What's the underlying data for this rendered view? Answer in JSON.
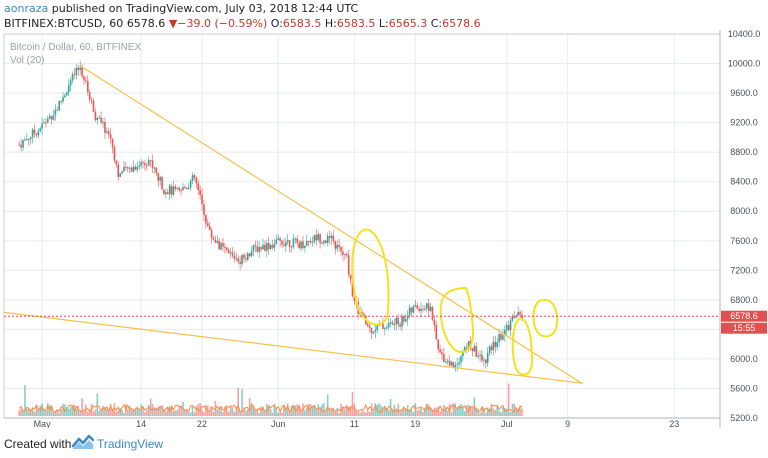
{
  "header": {
    "author": "aonraza",
    "published": "published on TradingView.com, July 03, 2018 12:44 UTC",
    "symbol": "BITFINEX:BTCUSD, 60",
    "price": "6578.6",
    "arrow": "▼",
    "change": "−39.0 (−0.59%)",
    "o_label": "O:",
    "o_value": "6583.5",
    "h_label": "H:",
    "h_value": "6583.5",
    "l_label": "L:",
    "l_value": "6565.3",
    "c_label": "C:",
    "c_value": "6578.6"
  },
  "footer": {
    "created_with": "Created with",
    "brand": "TradingView"
  },
  "chart_data": {
    "type": "candlestick",
    "title": "Bitcoin / Dollar, 60, BITFINEX",
    "subtitle": "Vol (20)",
    "ylim": [
      5200,
      10400
    ],
    "y_ticks": [
      "10400.0",
      "10000.0",
      "9600.0",
      "9200.0",
      "8800.0",
      "8400.0",
      "8000.0",
      "7600.0",
      "7200.0",
      "6800.0",
      "6400.0",
      "6000.0",
      "5600.0",
      "5200.0"
    ],
    "x_ticks": [
      "May",
      "14",
      "22",
      "Jun",
      "11",
      "19",
      "Jul",
      "9",
      "23"
    ],
    "last_price": "6578.6",
    "countdown": "15:55",
    "price_path": [
      {
        "date": "2018-04-28",
        "value": 8900
      },
      {
        "date": "2018-05-01",
        "value": 9150
      },
      {
        "date": "2018-05-03",
        "value": 9400
      },
      {
        "date": "2018-05-05",
        "value": 9800
      },
      {
        "date": "2018-05-06",
        "value": 9950
      },
      {
        "date": "2018-05-08",
        "value": 9300
      },
      {
        "date": "2018-05-10",
        "value": 9000
      },
      {
        "date": "2018-05-11",
        "value": 8500
      },
      {
        "date": "2018-05-13",
        "value": 8600
      },
      {
        "date": "2018-05-15",
        "value": 8700
      },
      {
        "date": "2018-05-17",
        "value": 8300
      },
      {
        "date": "2018-05-19",
        "value": 8250
      },
      {
        "date": "2018-05-21",
        "value": 8450
      },
      {
        "date": "2018-05-23",
        "value": 7700
      },
      {
        "date": "2018-05-25",
        "value": 7450
      },
      {
        "date": "2018-05-27",
        "value": 7350
      },
      {
        "date": "2018-05-29",
        "value": 7500
      },
      {
        "date": "2018-05-31",
        "value": 7550
      },
      {
        "date": "2018-06-02",
        "value": 7600
      },
      {
        "date": "2018-06-04",
        "value": 7550
      },
      {
        "date": "2018-06-06",
        "value": 7650
      },
      {
        "date": "2018-06-08",
        "value": 7600
      },
      {
        "date": "2018-06-10",
        "value": 7350
      },
      {
        "date": "2018-06-11",
        "value": 6750
      },
      {
        "date": "2018-06-13",
        "value": 6400
      },
      {
        "date": "2018-06-15",
        "value": 6450
      },
      {
        "date": "2018-06-17",
        "value": 6500
      },
      {
        "date": "2018-06-19",
        "value": 6700
      },
      {
        "date": "2018-06-21",
        "value": 6700
      },
      {
        "date": "2018-06-22",
        "value": 6100
      },
      {
        "date": "2018-06-24",
        "value": 5900
      },
      {
        "date": "2018-06-26",
        "value": 6200
      },
      {
        "date": "2018-06-28",
        "value": 5950
      },
      {
        "date": "2018-06-29",
        "value": 6150
      },
      {
        "date": "2018-07-01",
        "value": 6400
      },
      {
        "date": "2018-07-02",
        "value": 6600
      },
      {
        "date": "2018-07-03",
        "value": 6578.6
      }
    ],
    "trendlines": [
      {
        "name": "upper",
        "from": {
          "date": "2018-05-06",
          "value": 9970
        },
        "to": {
          "date": "2018-07-11",
          "value": 5660
        }
      },
      {
        "name": "lower",
        "from": {
          "date": "2018-04-26",
          "value": 6630
        },
        "to": {
          "date": "2018-07-11",
          "value": 5670
        }
      }
    ],
    "colors": {
      "up": "#26a69a",
      "down": "#ef5350",
      "trendline": "#f5c04a",
      "annotation": "#f2e21f",
      "price_line": "#e05050",
      "grid": "#e8ebf0",
      "volume_ma": "#ff8a3c"
    }
  }
}
